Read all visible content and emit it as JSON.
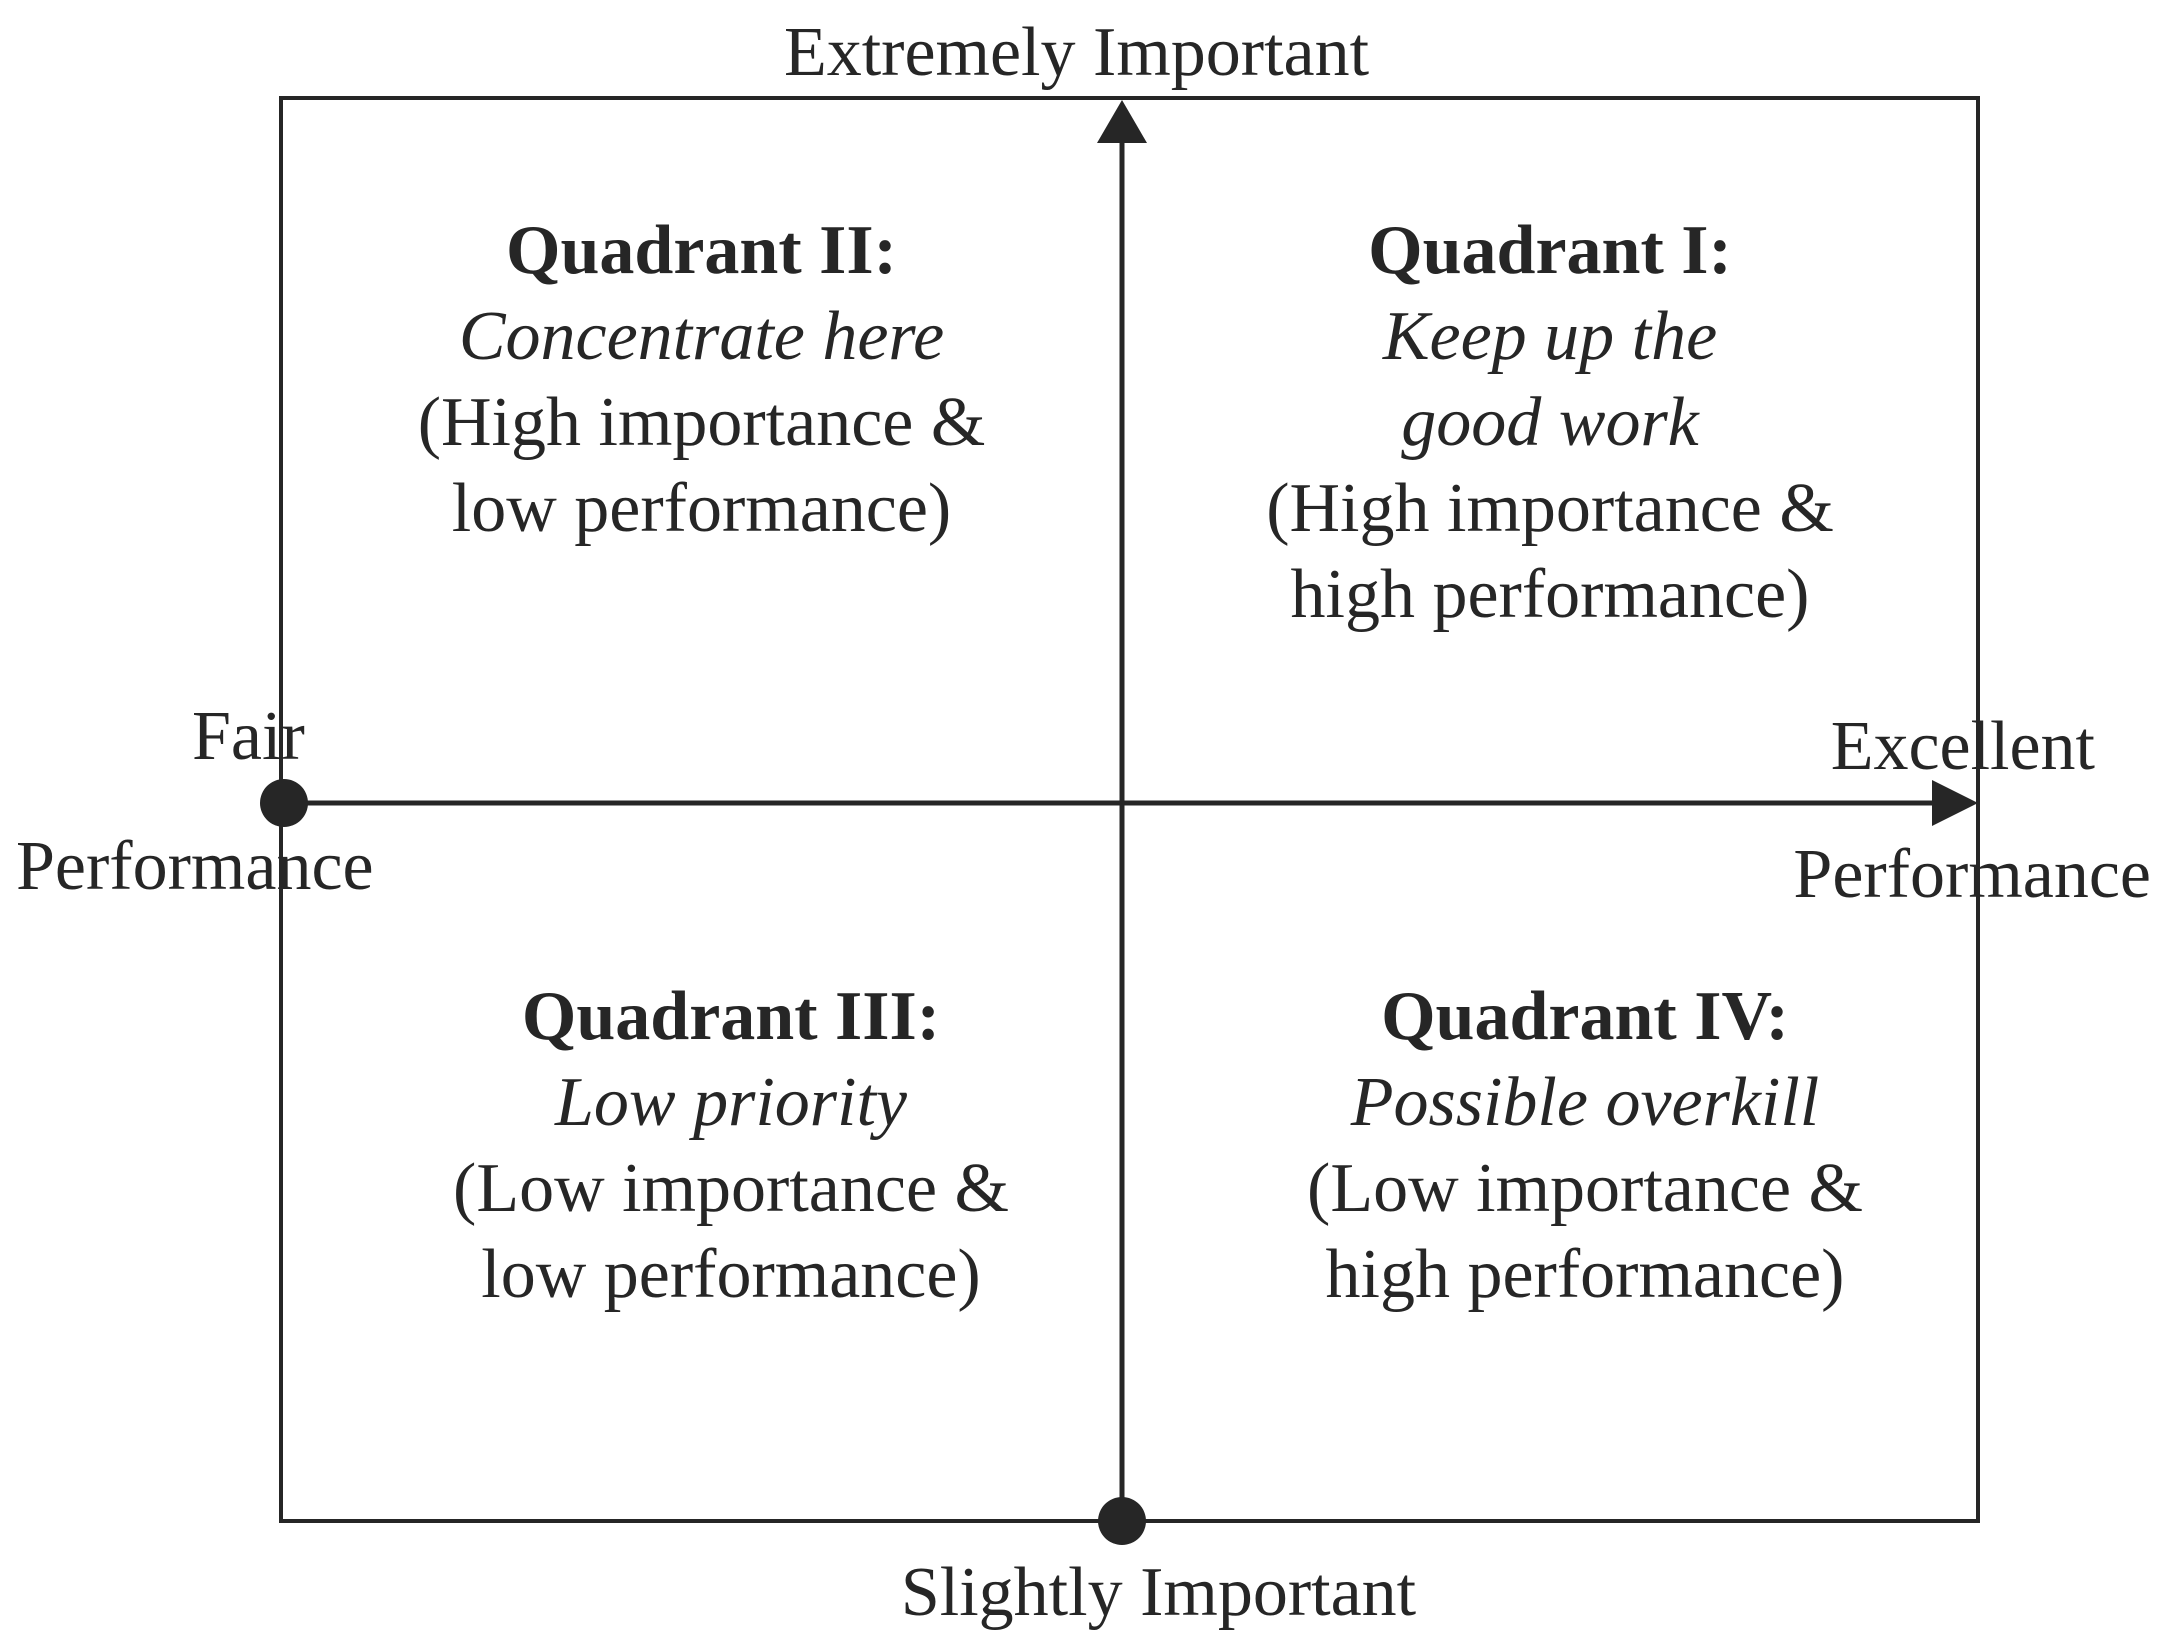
{
  "axes": {
    "top_label": "Extremely Important",
    "bottom_label": "Slightly Important",
    "left_label": "Fair",
    "left_axis_name": "Performance",
    "right_label": "Excellent",
    "right_axis_name": "Performance"
  },
  "quadrants": {
    "q1": {
      "title": "Quadrant I:",
      "subtitle_line1": "Keep up the",
      "subtitle_line2": "good work",
      "desc_line1": "(High importance &",
      "desc_line2": "high performance)"
    },
    "q2": {
      "title": "Quadrant II:",
      "subtitle": "Concentrate here",
      "desc_line1": "(High importance &",
      "desc_line2": "low performance)"
    },
    "q3": {
      "title": "Quadrant III:",
      "subtitle": "Low priority",
      "desc_line1": "(Low importance &",
      "desc_line2": "low performance)"
    },
    "q4": {
      "title": "Quadrant IV:",
      "subtitle": "Possible overkill",
      "desc_line1": "(Low importance &",
      "desc_line2": "high performance)"
    }
  },
  "colors": {
    "ink": "#262626",
    "background": "#ffffff"
  }
}
